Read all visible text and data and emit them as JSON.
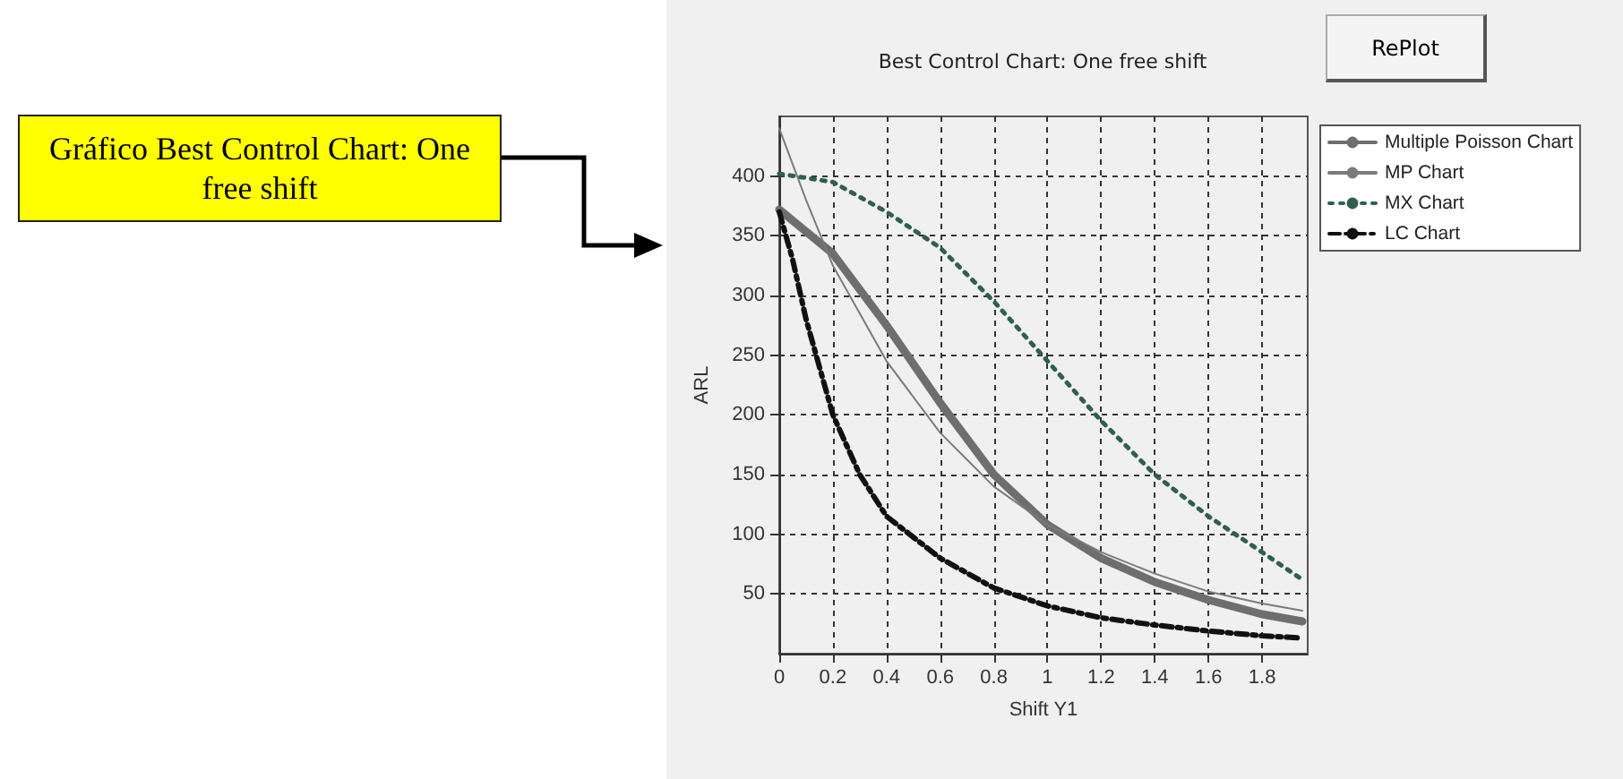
{
  "chart_data": {
    "type": "line",
    "title": "Best Control Chart: One free shift",
    "xlabel": "Shift Y1",
    "ylabel": "ARL",
    "annotations": [
      "Gráfico Best Control Chart: One free shift",
      "RePlot"
    ],
    "x": [
      0,
      0.2,
      0.4,
      0.6,
      0.8,
      1.0,
      1.2,
      1.4,
      1.6,
      1.8,
      1.95
    ],
    "series": [
      {
        "name": "Multiple Poisson Chart",
        "color": "#6e6e6e",
        "line_style": "solid",
        "values": [
          372,
          335,
          275,
          210,
          150,
          108,
          80,
          60,
          45,
          33,
          27
        ]
      },
      {
        "name": "MP Chart",
        "color": "#7a7a7a",
        "line_style": "solid",
        "x": [
          0,
          0.1,
          0.2,
          0.4,
          0.6,
          0.8,
          1.0,
          1.2,
          1.4,
          1.6,
          1.8,
          1.95
        ],
        "values": [
          440,
          380,
          325,
          245,
          185,
          140,
          108,
          85,
          67,
          52,
          42,
          36
        ]
      },
      {
        "name": "MX Chart",
        "color": "#2f5f50",
        "line_style": "dotted",
        "values": [
          402,
          395,
          370,
          340,
          295,
          245,
          195,
          150,
          115,
          85,
          62
        ]
      },
      {
        "name": "LC Chart",
        "color": "#111111",
        "line_style": "dashed",
        "x": [
          0,
          0.05,
          0.1,
          0.2,
          0.3,
          0.4,
          0.6,
          0.8,
          1.0,
          1.2,
          1.4,
          1.6,
          1.8,
          1.95
        ],
        "values": [
          370,
          330,
          280,
          200,
          150,
          115,
          80,
          55,
          40,
          30,
          24,
          19,
          15,
          13
        ]
      }
    ],
    "xlim": [
      0,
      1.97
    ],
    "xticks": [
      0,
      0.2,
      0.4,
      0.6,
      0.8,
      1,
      1.2,
      1.4,
      1.6,
      1.8
    ],
    "ylim": [
      0,
      450
    ],
    "yticks": [
      50,
      100,
      150,
      200,
      250,
      300,
      350,
      400
    ],
    "grid": true,
    "legend": "right",
    "marker": "none"
  }
}
